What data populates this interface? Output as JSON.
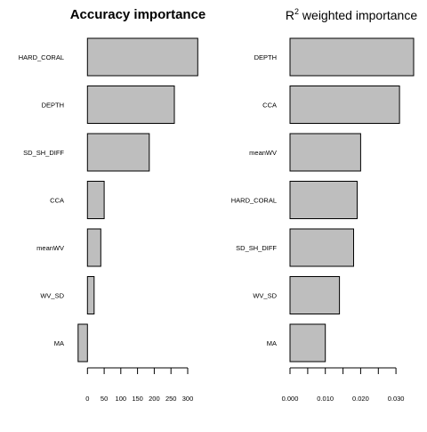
{
  "chart_data": [
    {
      "type": "bar",
      "orientation": "horizontal",
      "title": "Accuracy importance",
      "categories": [
        "HARD_CORAL",
        "DEPTH",
        "SD_SH_DIFF",
        "CCA",
        "meanWV",
        "WV_SD",
        "MA"
      ],
      "values": [
        330,
        260,
        185,
        50,
        40,
        20,
        -28
      ],
      "xlim": [
        -30,
        340
      ],
      "xticks": [
        0,
        50,
        100,
        150,
        200,
        250,
        300
      ],
      "xtick_labels": [
        "0",
        "50",
        "100",
        "150",
        "200",
        "250",
        "300"
      ],
      "xlabel": "",
      "ylabel": "",
      "grid": false,
      "bar_color": "#bebebe",
      "bar_edge_color": "#000000"
    },
    {
      "type": "bar",
      "orientation": "horizontal",
      "title_main": "R",
      "title_superscript": "2",
      "title_rest": " weighted importance",
      "categories": [
        "DEPTH",
        "CCA",
        "meanWV",
        "HARD_CORAL",
        "SD_SH_DIFF",
        "WV_SD",
        "MA"
      ],
      "values": [
        0.035,
        0.031,
        0.02,
        0.019,
        0.018,
        0.014,
        0.01
      ],
      "xlim": [
        0,
        0.035
      ],
      "xticks": [
        0.0,
        0.005,
        0.01,
        0.015,
        0.02,
        0.025,
        0.03
      ],
      "xtick_labels": [
        "0.000",
        "",
        "0.010",
        "",
        "0.020",
        "",
        "0.030"
      ],
      "xlabel": "",
      "ylabel": "",
      "grid": false,
      "bar_color": "#bebebe",
      "bar_edge_color": "#000000"
    }
  ]
}
